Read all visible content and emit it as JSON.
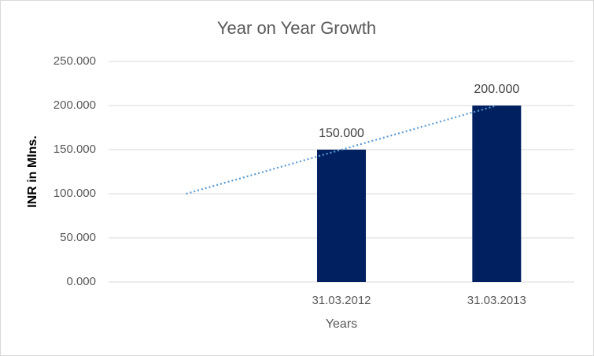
{
  "chart_data": {
    "type": "bar",
    "title": "Year on Year Growth",
    "x_label": "Years",
    "y_label": "INR in Mlns.",
    "categories": [
      null,
      "31.03.2012",
      "31.03.2013"
    ],
    "values": [
      null,
      150,
      200
    ],
    "value_labels": [
      null,
      "150.000",
      "200.000"
    ],
    "color": "#002060",
    "ylim": [
      0,
      250
    ],
    "yticks": [
      {
        "value": 0,
        "label": "0.000"
      },
      {
        "value": 50,
        "label": "50.000"
      },
      {
        "value": 100,
        "label": "100.000"
      },
      {
        "value": 150,
        "label": "150.000"
      },
      {
        "value": 200,
        "label": "200.000"
      },
      {
        "value": 250,
        "label": "250.000"
      }
    ],
    "grid": true,
    "trendline": {
      "kind": "linear",
      "color": "#5b9bd5",
      "style": "dotted"
    }
  }
}
